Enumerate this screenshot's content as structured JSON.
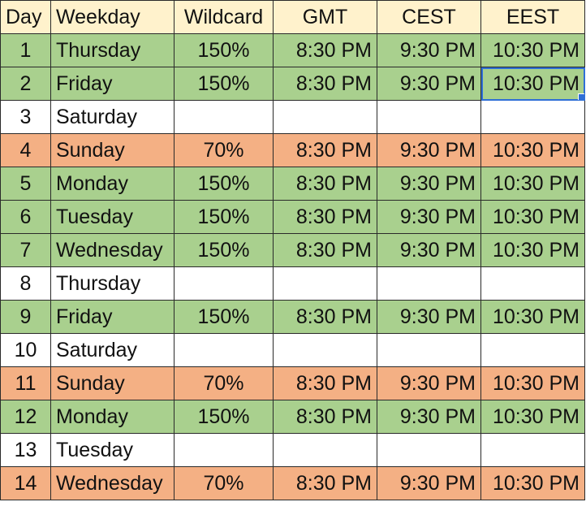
{
  "headers": [
    "Day",
    "Weekday",
    "Wildcard",
    "GMT",
    "CEST",
    "EEST"
  ],
  "rows": [
    {
      "day": "1",
      "weekday": "Thursday",
      "wildcard": "150%",
      "gmt": "8:30 PM",
      "cest": "9:30 PM",
      "eest": "10:30 PM",
      "fill": "green"
    },
    {
      "day": "2",
      "weekday": "Friday",
      "wildcard": "150%",
      "gmt": "8:30 PM",
      "cest": "9:30 PM",
      "eest": "10:30 PM",
      "fill": "green"
    },
    {
      "day": "3",
      "weekday": "Saturday",
      "wildcard": "",
      "gmt": "",
      "cest": "",
      "eest": "",
      "fill": "blank"
    },
    {
      "day": "4",
      "weekday": "Sunday",
      "wildcard": "70%",
      "gmt": "8:30 PM",
      "cest": "9:30 PM",
      "eest": "10:30 PM",
      "fill": "orange"
    },
    {
      "day": "5",
      "weekday": "Monday",
      "wildcard": "150%",
      "gmt": "8:30 PM",
      "cest": "9:30 PM",
      "eest": "10:30 PM",
      "fill": "green"
    },
    {
      "day": "6",
      "weekday": "Tuesday",
      "wildcard": "150%",
      "gmt": "8:30 PM",
      "cest": "9:30 PM",
      "eest": "10:30 PM",
      "fill": "green"
    },
    {
      "day": "7",
      "weekday": "Wednesday",
      "wildcard": "150%",
      "gmt": "8:30 PM",
      "cest": "9:30 PM",
      "eest": "10:30 PM",
      "fill": "green"
    },
    {
      "day": "8",
      "weekday": "Thursday",
      "wildcard": "",
      "gmt": "",
      "cest": "",
      "eest": "",
      "fill": "blank"
    },
    {
      "day": "9",
      "weekday": "Friday",
      "wildcard": "150%",
      "gmt": "8:30 PM",
      "cest": "9:30 PM",
      "eest": "10:30 PM",
      "fill": "green"
    },
    {
      "day": "10",
      "weekday": "Saturday",
      "wildcard": "",
      "gmt": "",
      "cest": "",
      "eest": "",
      "fill": "blank"
    },
    {
      "day": "11",
      "weekday": "Sunday",
      "wildcard": "70%",
      "gmt": "8:30 PM",
      "cest": "9:30 PM",
      "eest": "10:30 PM",
      "fill": "orange"
    },
    {
      "day": "12",
      "weekday": "Monday",
      "wildcard": "150%",
      "gmt": "8:30 PM",
      "cest": "9:30 PM",
      "eest": "10:30 PM",
      "fill": "green"
    },
    {
      "day": "13",
      "weekday": "Tuesday",
      "wildcard": "",
      "gmt": "",
      "cest": "",
      "eest": "",
      "fill": "blank"
    },
    {
      "day": "14",
      "weekday": "Wednesday",
      "wildcard": "70%",
      "gmt": "8:30 PM",
      "cest": "9:30 PM",
      "eest": "10:30 PM",
      "fill": "orange"
    }
  ],
  "selected_cell": {
    "row": 2,
    "column": "EEST"
  },
  "colors": {
    "header_fill": "#fff2cc",
    "green_fill": "#a9d08e",
    "orange_fill": "#f4b084",
    "selection": "#2f6fd6"
  }
}
